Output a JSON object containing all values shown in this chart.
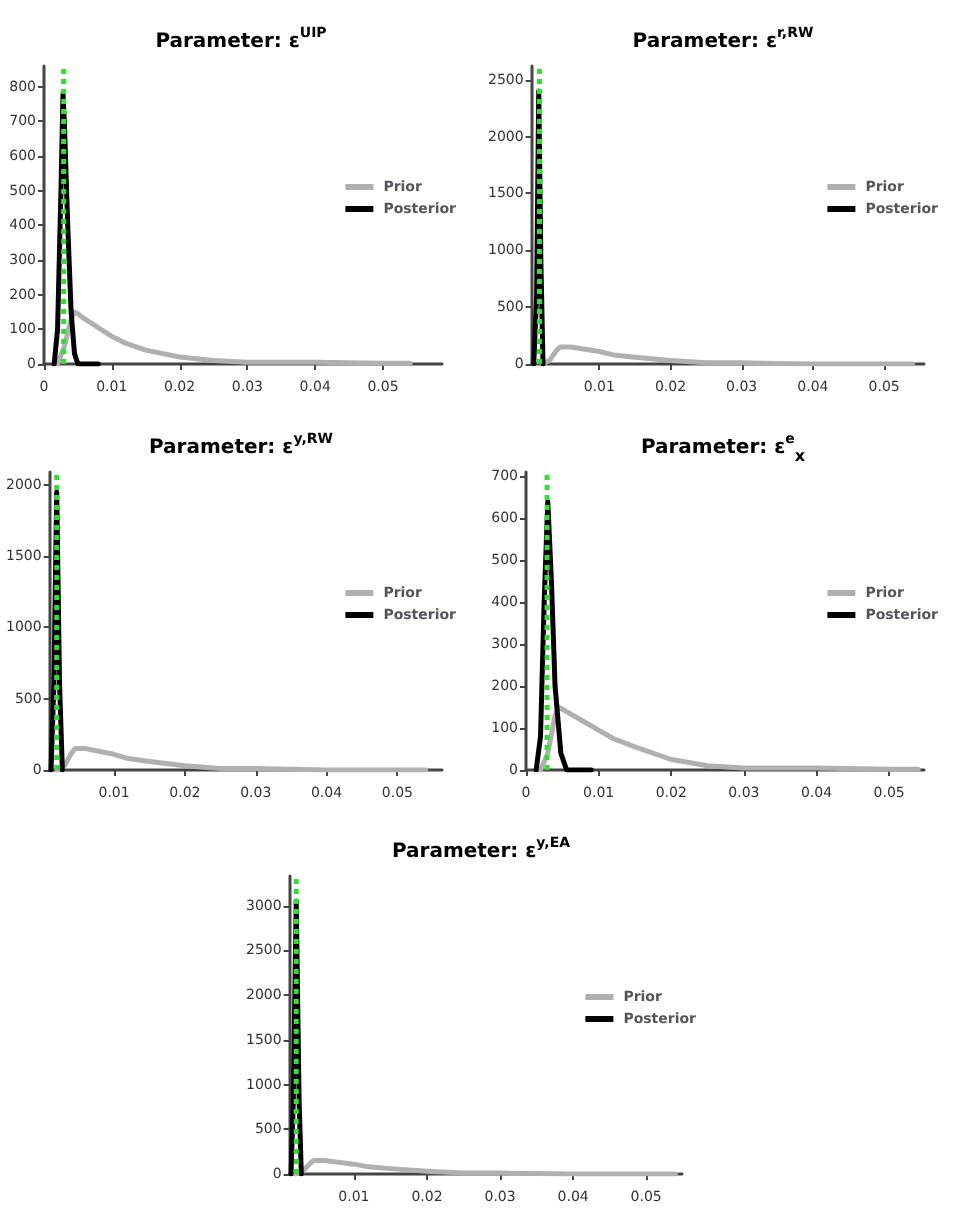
{
  "chart_data": [
    {
      "type": "line",
      "title": "Parameter: ε$^{UIP}$",
      "xlim": [
        0,
        0.0587
      ],
      "xticks": [
        0,
        0.01,
        0.02,
        0.03,
        0.04,
        0.05
      ],
      "ylim": [
        0,
        860
      ],
      "yticks": [
        0,
        100,
        200,
        300,
        400,
        500,
        600,
        700,
        800
      ],
      "legend": "right",
      "marker": "none",
      "grid": false,
      "series": [
        {
          "name": "Prior",
          "color": "#b0b0b0",
          "x": [
            0.002,
            0.003,
            0.004,
            0.0045,
            0.005,
            0.006,
            0.008,
            0.01,
            0.012,
            0.015,
            0.02,
            0.025,
            0.03,
            0.04,
            0.05,
            0.054
          ],
          "values": [
            0,
            50,
            130,
            150,
            145,
            130,
            105,
            80,
            60,
            40,
            20,
            10,
            5,
            5,
            2,
            2
          ]
        },
        {
          "name": "Posterior",
          "color": "#000000",
          "x": [
            0.0015,
            0.002,
            0.0025,
            0.0028,
            0.003,
            0.0035,
            0.004,
            0.0045,
            0.005,
            0.008
          ],
          "values": [
            0,
            100,
            500,
            780,
            700,
            400,
            150,
            30,
            0,
            0
          ]
        }
      ],
      "ref_lines": [
        {
          "axis": "x",
          "value": 0.0029,
          "color": "#33dd33",
          "line_style": "dotted"
        }
      ]
    },
    {
      "type": "line",
      "title": "Parameter: ε$^{r,RW}$",
      "xlim": [
        0.0005,
        0.0556
      ],
      "xticks": [
        0.01,
        0.02,
        0.03,
        0.04,
        0.05
      ],
      "ylim": [
        0,
        2620
      ],
      "yticks": [
        0,
        500,
        1000,
        1500,
        2000,
        2500
      ],
      "legend": "right",
      "marker": "none",
      "grid": false,
      "series": [
        {
          "name": "Prior",
          "color": "#b0b0b0",
          "x": [
            0.002,
            0.003,
            0.004,
            0.0045,
            0.005,
            0.006,
            0.008,
            0.01,
            0.012,
            0.015,
            0.02,
            0.025,
            0.03,
            0.04,
            0.05,
            0.054
          ],
          "values": [
            0,
            30,
            120,
            150,
            150,
            150,
            130,
            110,
            80,
            60,
            30,
            10,
            10,
            0,
            0,
            0
          ]
        },
        {
          "name": "Posterior",
          "color": "#000000",
          "x": [
            0.0008,
            0.0012,
            0.0015,
            0.0018,
            0.0021
          ],
          "values": [
            0,
            600,
            2400,
            900,
            0
          ]
        }
      ],
      "ref_lines": [
        {
          "axis": "x",
          "value": 0.0016,
          "color": "#33dd33",
          "line_style": "dotted"
        }
      ]
    },
    {
      "type": "line",
      "title": "Parameter: ε$^{y,RW}$",
      "xlim": [
        0.0009,
        0.0563
      ],
      "xticks": [
        0.01,
        0.02,
        0.03,
        0.04,
        0.05
      ],
      "ylim": [
        0,
        2090
      ],
      "yticks": [
        0,
        500,
        1000,
        1500,
        2000
      ],
      "legend": "right",
      "marker": "none",
      "grid": false,
      "series": [
        {
          "name": "Prior",
          "color": "#b0b0b0",
          "x": [
            0.002,
            0.003,
            0.004,
            0.0045,
            0.005,
            0.006,
            0.008,
            0.01,
            0.012,
            0.015,
            0.02,
            0.025,
            0.03,
            0.04,
            0.05,
            0.054
          ],
          "values": [
            0,
            30,
            120,
            150,
            150,
            150,
            130,
            110,
            80,
            60,
            30,
            10,
            10,
            0,
            0,
            0
          ]
        },
        {
          "name": "Posterior",
          "color": "#000000",
          "x": [
            0.0011,
            0.0015,
            0.0019,
            0.0023,
            0.0027
          ],
          "values": [
            0,
            600,
            1950,
            600,
            0
          ]
        }
      ],
      "ref_lines": [
        {
          "axis": "x",
          "value": 0.0019,
          "color": "#33dd33",
          "line_style": "dotted"
        }
      ]
    },
    {
      "type": "line",
      "title": "Parameter: ε$^{e}$$_{x}$",
      "xlim": [
        0,
        0.0548
      ],
      "xticks": [
        0,
        0.01,
        0.02,
        0.03,
        0.04,
        0.05
      ],
      "ylim": [
        0,
        710
      ],
      "yticks": [
        0,
        100,
        200,
        300,
        400,
        500,
        600,
        700
      ],
      "legend": "right",
      "marker": "none",
      "grid": false,
      "series": [
        {
          "name": "Prior",
          "color": "#b0b0b0",
          "x": [
            0.002,
            0.003,
            0.004,
            0.0045,
            0.005,
            0.006,
            0.008,
            0.01,
            0.012,
            0.015,
            0.02,
            0.025,
            0.03,
            0.04,
            0.05,
            0.054
          ],
          "values": [
            0,
            40,
            130,
            150,
            145,
            135,
            115,
            95,
            75,
            55,
            25,
            10,
            5,
            5,
            2,
            2
          ]
        },
        {
          "name": "Posterior",
          "color": "#000000",
          "x": [
            0.0014,
            0.002,
            0.0025,
            0.003,
            0.0035,
            0.004,
            0.0048,
            0.0056,
            0.009
          ],
          "values": [
            0,
            80,
            400,
            640,
            450,
            200,
            40,
            0,
            0
          ]
        }
      ],
      "ref_lines": [
        {
          "axis": "x",
          "value": 0.0029,
          "color": "#33dd33",
          "line_style": "dotted"
        }
      ]
    },
    {
      "type": "line",
      "title": "Parameter: ε$^{y,EA}$",
      "xlim": [
        0.0012,
        0.0549
      ],
      "xticks": [
        0.01,
        0.02,
        0.03,
        0.04,
        0.05
      ],
      "ylim": [
        0,
        3330
      ],
      "yticks": [
        0,
        500,
        1000,
        1500,
        2000,
        2500,
        3000
      ],
      "legend": "right",
      "marker": "none",
      "grid": false,
      "series": [
        {
          "name": "Prior",
          "color": "#b0b0b0",
          "x": [
            0.002,
            0.003,
            0.004,
            0.0045,
            0.005,
            0.006,
            0.008,
            0.01,
            0.012,
            0.015,
            0.02,
            0.025,
            0.03,
            0.04,
            0.05,
            0.054
          ],
          "values": [
            0,
            30,
            120,
            150,
            150,
            150,
            130,
            110,
            80,
            60,
            30,
            10,
            10,
            0,
            0,
            0
          ]
        },
        {
          "name": "Posterior",
          "color": "#000000",
          "x": [
            0.0014,
            0.0017,
            0.0021,
            0.0025,
            0.0028
          ],
          "values": [
            0,
            800,
            3050,
            800,
            0
          ]
        }
      ],
      "ref_lines": [
        {
          "axis": "x",
          "value": 0.0021,
          "color": "#33dd33",
          "line_style": "dotted"
        }
      ]
    }
  ]
}
